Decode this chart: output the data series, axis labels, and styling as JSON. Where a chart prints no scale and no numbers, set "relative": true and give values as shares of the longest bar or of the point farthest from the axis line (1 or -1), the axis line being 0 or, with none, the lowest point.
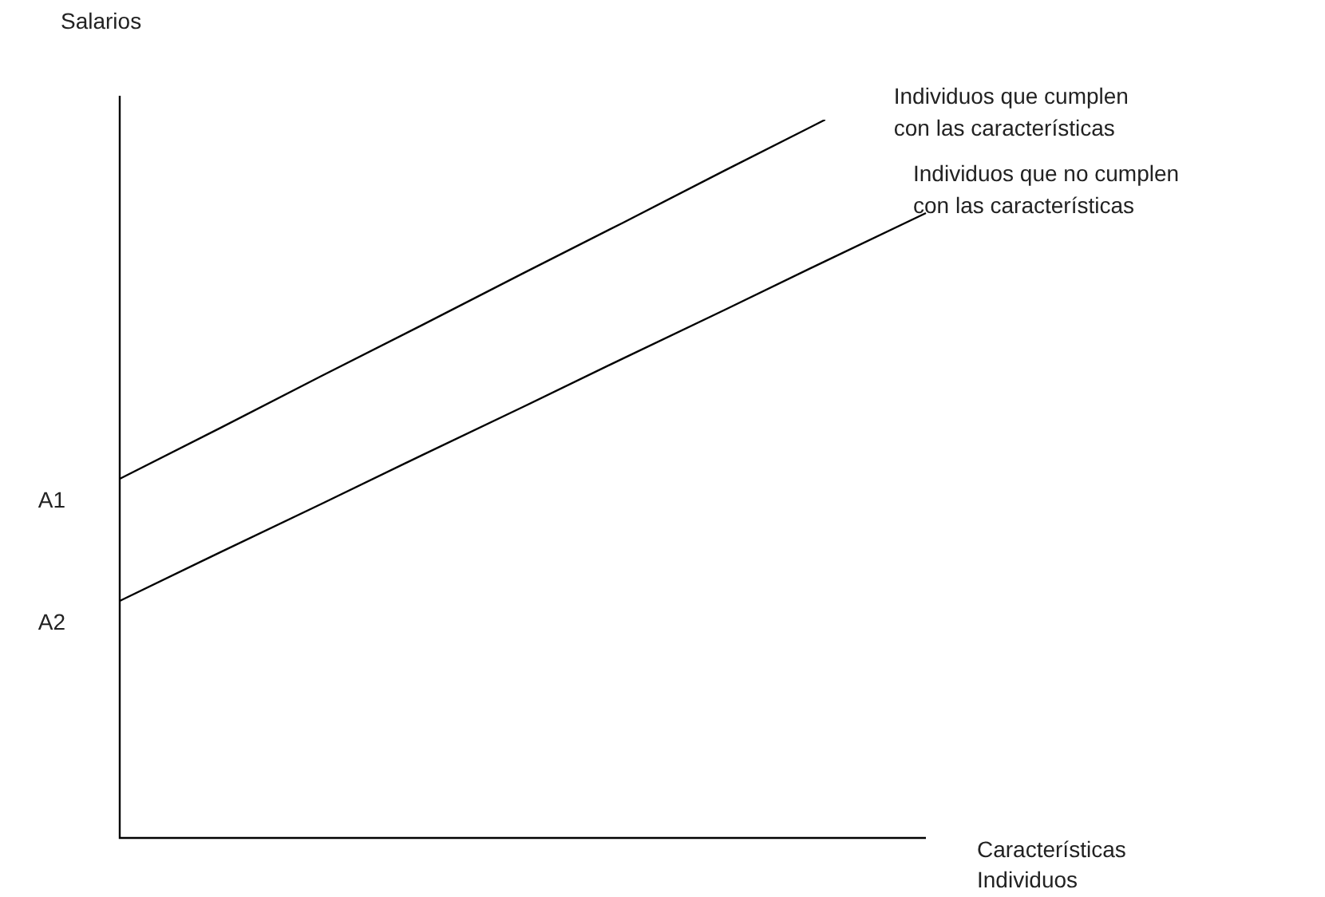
{
  "chart_data": {
    "type": "line",
    "relative": true,
    "ylabel": "Salarios",
    "xlabel": "Características Individuos",
    "categories": [
      null,
      null,
      null,
      null,
      null,
      null,
      null,
      null,
      null
    ],
    "tick_labels": false,
    "grid": false,
    "legend": false,
    "marker": "none",
    "line_style": "solid",
    "series": [
      {
        "name": "Individuos que cumplen con las características",
        "color": "#000000",
        "values": [
          0.5,
          0.571,
          0.643,
          0.714,
          0.786,
          0.857,
          0.929,
          1,
          null
        ]
      },
      {
        "name": "Individuos que no cumplen con las características",
        "color": "#000000",
        "values": [
          0.33,
          0.398,
          0.465,
          0.533,
          0.6,
          0.668,
          0.735,
          0.803,
          0.87
        ]
      }
    ],
    "annotations": [
      "A1",
      "A2"
    ]
  }
}
